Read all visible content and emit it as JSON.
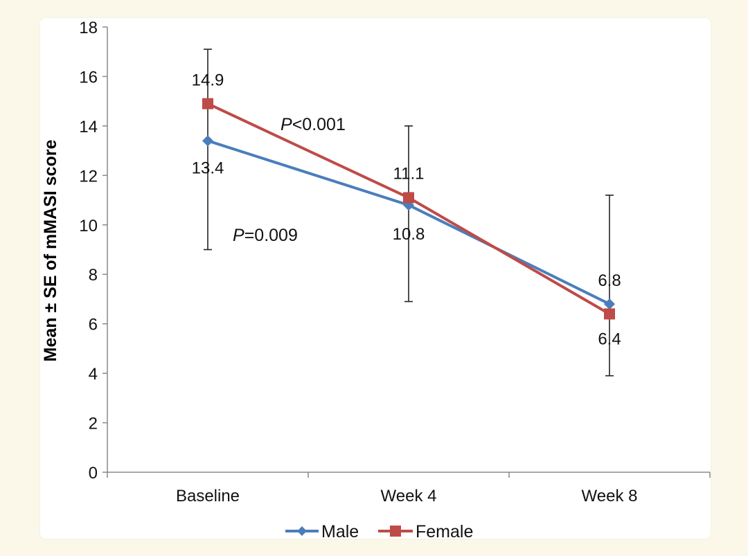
{
  "chart_data": {
    "type": "line",
    "title": "",
    "xlabel": "",
    "ylabel": "Mean ± SE of mMASI score",
    "categories": [
      "Baseline",
      "Week 4",
      "Week 8"
    ],
    "ylim": [
      0,
      18
    ],
    "yticks": [
      0,
      2,
      4,
      6,
      8,
      10,
      12,
      14,
      16,
      18
    ],
    "grid": false,
    "legend_position": "bottom",
    "series": [
      {
        "name": "Male",
        "values": [
          13.4,
          10.8,
          6.8
        ],
        "labels": [
          "13.4",
          "10.8",
          "6.8"
        ],
        "color": "#4a7ebb",
        "marker": "diamond"
      },
      {
        "name": "Female",
        "values": [
          14.9,
          11.1,
          6.4
        ],
        "labels": [
          "14.9",
          "11.1",
          "6.4"
        ],
        "color": "#be4b48",
        "marker": "square"
      }
    ],
    "error_bars": [
      {
        "category": "Baseline",
        "low": 9.0,
        "high": 17.1
      },
      {
        "category": "Week 4",
        "low": 6.9,
        "high": 14.0
      },
      {
        "category": "Week 8",
        "low": 3.9,
        "high": 11.2
      }
    ],
    "annotations": [
      {
        "italic": "P",
        "text": "<0.001"
      },
      {
        "italic": "P",
        "text": "=0.009"
      }
    ]
  }
}
